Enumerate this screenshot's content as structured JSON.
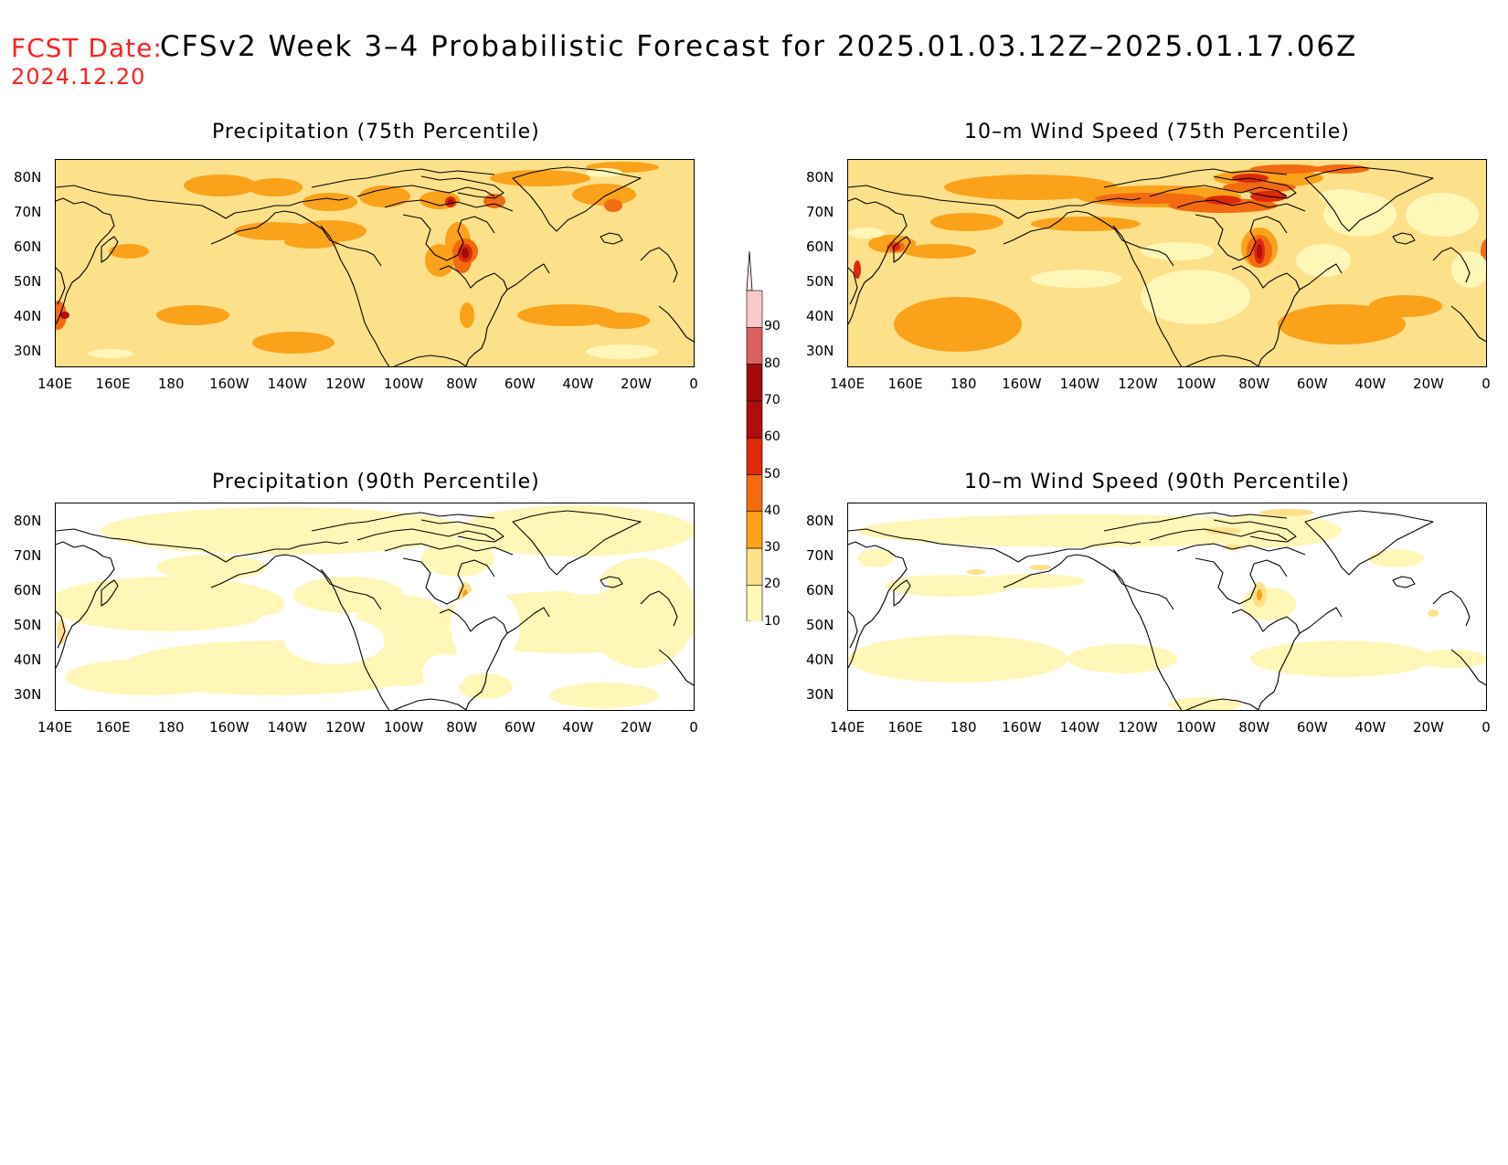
{
  "header": {
    "fcst_label": "FCST Date:",
    "fcst_date": "2024.12.20",
    "title": "CFSv2 Week 3–4 Probabilistic Forecast for 2025.01.03.12Z–2025.01.17.06Z"
  },
  "panels": [
    {
      "id": "precip75",
      "title": "Precipitation (75th Percentile)"
    },
    {
      "id": "wind75",
      "title": "10–m Wind Speed (75th Percentile)"
    },
    {
      "id": "precip90",
      "title": "Precipitation (90th Percentile)"
    },
    {
      "id": "wind90",
      "title": "10–m Wind Speed (90th Percentile)"
    }
  ],
  "axes": {
    "lat_labels": [
      "80N",
      "70N",
      "60N",
      "50N",
      "40N",
      "30N"
    ],
    "lon_labels": [
      "140E",
      "160E",
      "180",
      "160W",
      "140W",
      "120W",
      "100W",
      "80W",
      "60W",
      "40W",
      "20W",
      "0"
    ]
  },
  "colorbar": {
    "levels": [
      "90",
      "80",
      "70",
      "60",
      "50",
      "40",
      "30",
      "20",
      "10"
    ],
    "colors": {
      "c10": "#fff7b8",
      "c20": "#fde08a",
      "c30": "#f9a21a",
      "c40": "#f26b10",
      "c50": "#dd2a08",
      "c60": "#b00d0d",
      "c70": "#a30b0b",
      "c80": "#dc6060",
      "c90": "#f2a8a8"
    }
  }
}
